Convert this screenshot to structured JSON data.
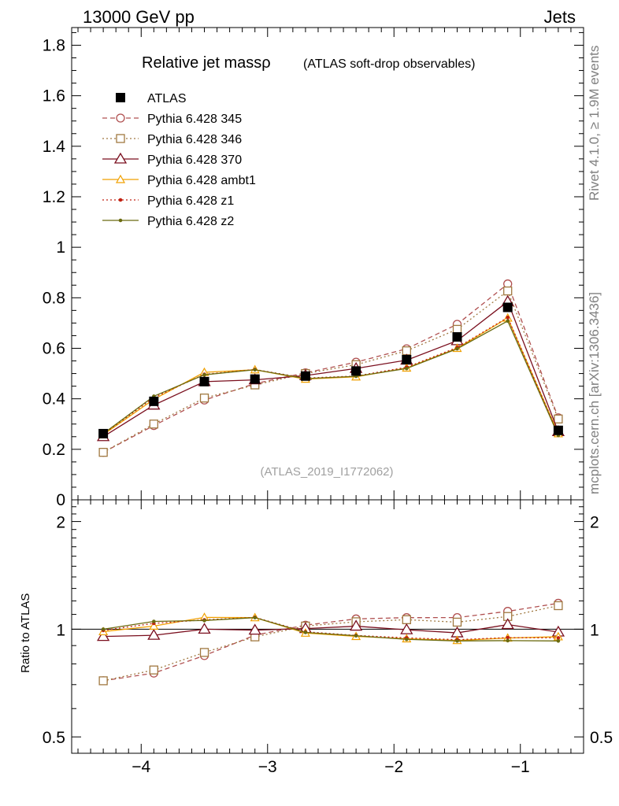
{
  "header": {
    "left": "13000 GeV pp",
    "right": "Jets"
  },
  "side_labels": {
    "rivet": "Rivet 4.1.0, ≥ 1.9M events",
    "mcplots": "mcplots.cern.ch [arXiv:1306.3436]"
  },
  "chart_data": {
    "type": "line",
    "title": "Relative jet mass ρ",
    "title_main": "Relative jet massρ",
    "title_sub": "(ATLAS soft-drop observables)",
    "watermark": "(ATLAS_2019_I1772062)",
    "xlabel": "",
    "ylabel": "",
    "ratio_ylabel": "Ratio to ATLAS",
    "x": [
      -4.3,
      -3.9,
      -3.5,
      -3.1,
      -2.7,
      -2.3,
      -1.9,
      -1.5,
      -1.1,
      -0.7
    ],
    "xlim": [
      -4.55,
      -0.5
    ],
    "ylim": [
      0,
      1.87
    ],
    "ratio_ylim": [
      0.45,
      2.3
    ],
    "x_ticks": [
      -4,
      -3,
      -2,
      -1
    ],
    "x_tick_labels": [
      "−4",
      "−3",
      "−2",
      "−1"
    ],
    "y_ticks": [
      0,
      0.2,
      0.4,
      0.6,
      0.8,
      1,
      1.2,
      1.4,
      1.6,
      1.8
    ],
    "y_tick_labels": [
      "0",
      "0.2",
      "0.4",
      "0.6",
      "0.8",
      "1",
      "1.2",
      "1.4",
      "1.6",
      "1.8"
    ],
    "ratio_ticks": [
      0.5,
      1,
      2
    ],
    "ratio_tick_labels": [
      "0.5",
      "1",
      "2"
    ],
    "reference": {
      "name": "ATLAS",
      "color": "#000000",
      "values": [
        0.262,
        0.39,
        0.468,
        0.478,
        0.49,
        0.51,
        0.555,
        0.645,
        0.762,
        0.275
      ],
      "errors": [
        0.008,
        0.008,
        0.008,
        0.008,
        0.008,
        0.008,
        0.008,
        0.01,
        0.012,
        0.008
      ]
    },
    "series": [
      {
        "name": "Pythia 6.428 345",
        "color": "#b05050",
        "marker": "circle",
        "dash": "6,4",
        "values": [
          0.188,
          0.294,
          0.395,
          0.46,
          0.503,
          0.545,
          0.598,
          0.695,
          0.855,
          0.325
        ]
      },
      {
        "name": "Pythia 6.428 346",
        "color": "#a07840",
        "marker": "square",
        "dash": "2,3",
        "values": [
          0.188,
          0.3,
          0.403,
          0.455,
          0.5,
          0.535,
          0.59,
          0.675,
          0.827,
          0.32
        ]
      },
      {
        "name": "Pythia 6.428 370",
        "color": "#7a0f1e",
        "marker": "triangle",
        "dash": "",
        "values": [
          0.25,
          0.375,
          0.468,
          0.475,
          0.492,
          0.52,
          0.553,
          0.63,
          0.785,
          0.27
        ]
      },
      {
        "name": "Pythia 6.428 ambt1",
        "color": "#f0a000",
        "marker": "triangle-small",
        "dash": "",
        "values": [
          0.258,
          0.398,
          0.505,
          0.515,
          0.478,
          0.487,
          0.522,
          0.6,
          0.72,
          0.262
        ]
      },
      {
        "name": "Pythia 6.428 z1",
        "color": "#c02010",
        "marker": "dot",
        "dash": "2,3",
        "values": [
          0.26,
          0.405,
          0.497,
          0.516,
          0.482,
          0.49,
          0.525,
          0.603,
          0.722,
          0.26
        ]
      },
      {
        "name": "Pythia 6.428 z2",
        "color": "#6b6b10",
        "marker": "dot",
        "dash": "",
        "values": [
          0.262,
          0.41,
          0.495,
          0.515,
          0.48,
          0.489,
          0.52,
          0.598,
          0.708,
          0.255
        ]
      }
    ]
  }
}
